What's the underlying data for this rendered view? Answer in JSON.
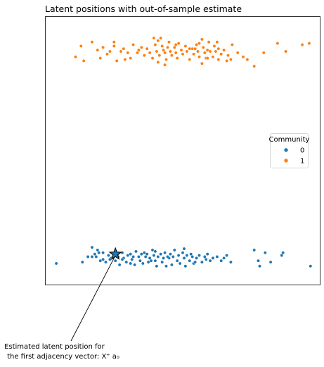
{
  "chart_data": {
    "type": "scatter",
    "title": "Latent positions with out-of-sample estimate",
    "xlabel": "",
    "ylabel": "",
    "axes_ticks": false,
    "grid": false,
    "xlim": [
      -1,
      1
    ],
    "ylim": [
      -1,
      1
    ],
    "legend": {
      "title": "Community",
      "placement": "right",
      "entries": [
        {
          "label": "0",
          "color": "#1f77b4"
        },
        {
          "label": "1",
          "color": "#ff7f0e"
        }
      ]
    },
    "series": [
      {
        "name": "0",
        "color": "#1f77b4",
        "points": [
          [
            -0.92,
            -0.84
          ],
          [
            -0.69,
            -0.79
          ],
          [
            -0.66,
            -0.79
          ],
          [
            -0.64,
            -0.77
          ],
          [
            -0.6,
            -0.82
          ],
          [
            -0.63,
            -0.79
          ],
          [
            -0.62,
            -0.74
          ],
          [
            -0.61,
            -0.76
          ],
          [
            -0.58,
            -0.76
          ],
          [
            -0.58,
            -0.81
          ],
          [
            -0.56,
            -0.83
          ],
          [
            -0.54,
            -0.78
          ],
          [
            -0.52,
            -0.8
          ],
          [
            -0.5,
            -0.77
          ],
          [
            -0.49,
            -0.82
          ],
          [
            -0.47,
            -0.79
          ],
          [
            -0.46,
            -0.85
          ],
          [
            -0.44,
            -0.76
          ],
          [
            -0.43,
            -0.8
          ],
          [
            -0.41,
            -0.83
          ],
          [
            -0.4,
            -0.78
          ],
          [
            -0.38,
            -0.77
          ],
          [
            -0.37,
            -0.81
          ],
          [
            -0.36,
            -0.79
          ],
          [
            -0.35,
            -0.85
          ],
          [
            -0.34,
            -0.75
          ],
          [
            -0.32,
            -0.79
          ],
          [
            -0.31,
            -0.82
          ],
          [
            -0.3,
            -0.77
          ],
          [
            -0.29,
            -0.84
          ],
          [
            -0.27,
            -0.79
          ],
          [
            -0.26,
            -0.77
          ],
          [
            -0.25,
            -0.83
          ],
          [
            -0.24,
            -0.8
          ],
          [
            -0.22,
            -0.74
          ],
          [
            -0.21,
            -0.78
          ],
          [
            -0.2,
            -0.82
          ],
          [
            -0.19,
            -0.86
          ],
          [
            -0.18,
            -0.79
          ],
          [
            -0.16,
            -0.77
          ],
          [
            -0.15,
            -0.83
          ],
          [
            -0.14,
            -0.8
          ],
          [
            -0.13,
            -0.76
          ],
          [
            -0.12,
            -0.86
          ],
          [
            -0.1,
            -0.8
          ],
          [
            -0.09,
            -0.77
          ],
          [
            -0.08,
            -0.85
          ],
          [
            -0.07,
            -0.79
          ],
          [
            -0.06,
            -0.74
          ],
          [
            -0.04,
            -0.82
          ],
          [
            -0.03,
            -0.78
          ],
          [
            -0.02,
            -0.84
          ],
          [
            0.0,
            -0.76
          ],
          [
            0.01,
            -0.8
          ],
          [
            0.02,
            -0.86
          ],
          [
            0.03,
            -0.78
          ],
          [
            0.05,
            -0.82
          ],
          [
            0.06,
            -0.77
          ],
          [
            0.07,
            -0.79
          ],
          [
            0.08,
            -0.84
          ],
          [
            0.1,
            -0.8
          ],
          [
            0.12,
            -0.78
          ],
          [
            0.14,
            -0.83
          ],
          [
            0.16,
            -0.79
          ],
          [
            0.18,
            -0.77
          ],
          [
            0.2,
            -0.82
          ],
          [
            0.22,
            -0.8
          ],
          [
            0.25,
            -0.79
          ],
          [
            0.28,
            -0.82
          ],
          [
            0.32,
            -0.78
          ],
          [
            0.35,
            -0.83
          ],
          [
            0.52,
            -0.74
          ],
          [
            0.55,
            -0.82
          ],
          [
            0.56,
            -0.86
          ],
          [
            0.6,
            -0.76
          ],
          [
            0.64,
            -0.83
          ],
          [
            0.72,
            -0.78
          ],
          [
            0.73,
            -0.76
          ],
          [
            0.93,
            -0.86
          ],
          [
            -0.73,
            -0.83
          ],
          [
            -0.66,
            -0.72
          ],
          [
            -0.44,
            -0.81
          ],
          [
            -0.28,
            -0.76
          ],
          [
            -0.2,
            -0.75
          ],
          [
            -0.11,
            -0.79
          ],
          [
            0.01,
            -0.73
          ],
          [
            0.09,
            -0.83
          ],
          [
            0.17,
            -0.81
          ],
          [
            0.3,
            -0.8
          ],
          [
            -0.53,
            -0.81
          ],
          [
            -0.38,
            -0.84
          ],
          [
            -0.23,
            -0.82
          ]
        ]
      },
      {
        "name": "1",
        "color": "#ff7f0e",
        "points": [
          [
            -0.78,
            0.7
          ],
          [
            -0.66,
            0.81
          ],
          [
            -0.62,
            0.75
          ],
          [
            -0.6,
            0.69
          ],
          [
            -0.58,
            0.77
          ],
          [
            -0.55,
            0.72
          ],
          [
            -0.53,
            0.74
          ],
          [
            -0.5,
            0.81
          ],
          [
            -0.48,
            0.67
          ],
          [
            -0.45,
            0.74
          ],
          [
            -0.43,
            0.76
          ],
          [
            -0.4,
            0.73
          ],
          [
            -0.38,
            0.69
          ],
          [
            -0.36,
            0.79
          ],
          [
            -0.33,
            0.73
          ],
          [
            -0.3,
            0.77
          ],
          [
            -0.28,
            0.71
          ],
          [
            -0.26,
            0.76
          ],
          [
            -0.24,
            0.73
          ],
          [
            -0.22,
            0.69
          ],
          [
            -0.2,
            0.79
          ],
          [
            -0.19,
            0.74
          ],
          [
            -0.18,
            0.66
          ],
          [
            -0.17,
            0.71
          ],
          [
            -0.16,
            0.84
          ],
          [
            -0.15,
            0.78
          ],
          [
            -0.14,
            0.75
          ],
          [
            -0.13,
            0.73
          ],
          [
            -0.12,
            0.68
          ],
          [
            -0.11,
            0.77
          ],
          [
            -0.1,
            0.81
          ],
          [
            -0.09,
            0.74
          ],
          [
            -0.08,
            0.71
          ],
          [
            -0.06,
            0.77
          ],
          [
            -0.05,
            0.73
          ],
          [
            -0.04,
            0.69
          ],
          [
            -0.03,
            0.8
          ],
          [
            -0.01,
            0.75
          ],
          [
            0.0,
            0.72
          ],
          [
            0.02,
            0.78
          ],
          [
            0.03,
            0.74
          ],
          [
            0.05,
            0.68
          ],
          [
            0.07,
            0.76
          ],
          [
            0.08,
            0.72
          ],
          [
            0.1,
            0.79
          ],
          [
            0.11,
            0.74
          ],
          [
            0.12,
            0.7
          ],
          [
            0.14,
            0.83
          ],
          [
            0.15,
            0.77
          ],
          [
            0.16,
            0.73
          ],
          [
            0.17,
            0.69
          ],
          [
            0.18,
            0.75
          ],
          [
            0.19,
            0.81
          ],
          [
            0.2,
            0.74
          ],
          [
            0.22,
            0.7
          ],
          [
            0.23,
            0.78
          ],
          [
            0.24,
            0.74
          ],
          [
            0.26,
            0.76
          ],
          [
            0.28,
            0.72
          ],
          [
            0.3,
            0.75
          ],
          [
            0.33,
            0.71
          ],
          [
            0.36,
            0.79
          ],
          [
            0.4,
            0.73
          ],
          [
            0.44,
            0.7
          ],
          [
            0.47,
            0.68
          ],
          [
            0.52,
            0.63
          ],
          [
            0.59,
            0.73
          ],
          [
            0.69,
            0.8
          ],
          [
            0.75,
            0.74
          ],
          [
            0.87,
            0.79
          ],
          [
            0.92,
            0.8
          ],
          [
            -0.74,
            0.78
          ],
          [
            -0.5,
            0.78
          ],
          [
            -0.32,
            0.75
          ],
          [
            -0.21,
            0.84
          ],
          [
            -0.13,
            0.64
          ],
          [
            -0.05,
            0.79
          ],
          [
            0.05,
            0.76
          ],
          [
            0.12,
            0.8
          ],
          [
            0.26,
            0.68
          ],
          [
            0.35,
            0.68
          ],
          [
            -0.72,
            0.67
          ],
          [
            -0.18,
            0.82
          ],
          [
            0.09,
            0.76
          ],
          [
            0.18,
            0.69
          ],
          [
            0.25,
            0.81
          ],
          [
            0.14,
            0.65
          ],
          [
            -0.42,
            0.68
          ],
          [
            0.32,
            0.67
          ]
        ]
      }
    ],
    "estimate": {
      "point": [
        -0.49,
        -0.77
      ],
      "marker": "star",
      "color": "#1f77b4",
      "annotation": "Estimated latent position for\n the first adjacency vector: X⁺ a₀",
      "annotation_lines": [
        "Estimated latent position for",
        " the first adjacency vector: X⁺ a₀"
      ]
    }
  }
}
